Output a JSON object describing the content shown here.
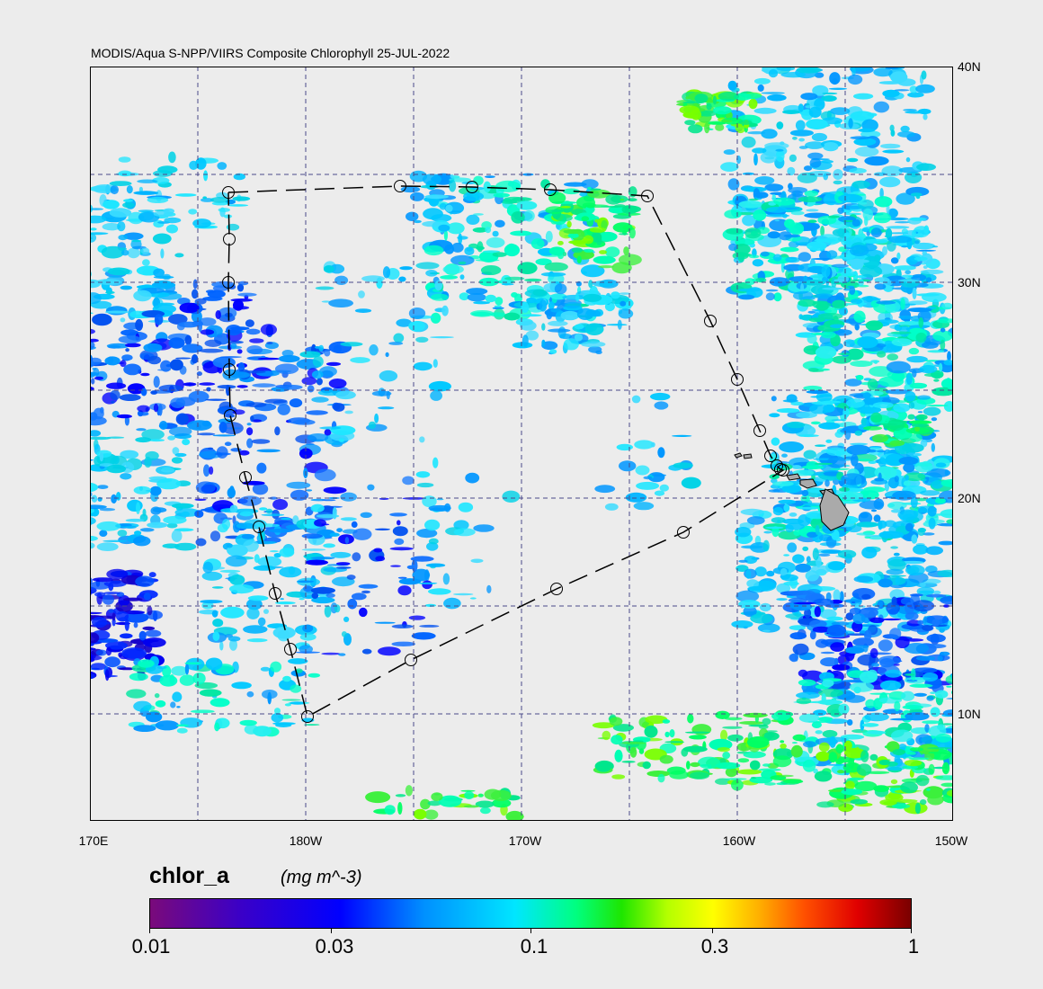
{
  "title": "MODIS/Aqua S-NPP/VIIRS Composite Chlorophyll 25-JUL-2022",
  "lat_labels": [
    "40N",
    "30N",
    "20N",
    "10N"
  ],
  "lon_labels": [
    "170E",
    "180W",
    "170W",
    "160W",
    "150W"
  ],
  "colorbar": {
    "variable": "chlor_a",
    "units": "(mg m^-3)",
    "tick_labels": [
      "0.01",
      "0.03",
      "0.1",
      "0.3",
      "1"
    ],
    "scale": "log"
  },
  "colors": {
    "background": "#ececec",
    "grid": "#4a4a8a",
    "track": "#000000",
    "land": "#aaaaaa"
  }
}
